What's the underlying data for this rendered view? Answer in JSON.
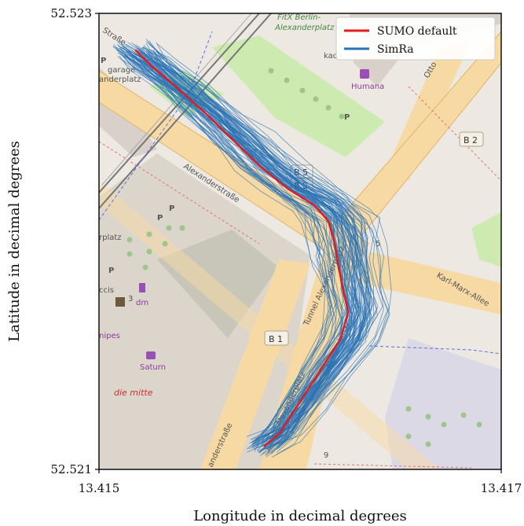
{
  "chart_data": {
    "type": "line",
    "xlabel": "Longitude in decimal degrees",
    "ylabel": "Latitude in decimal degrees",
    "xlim": [
      13.415,
      13.417
    ],
    "ylim": [
      52.521,
      52.523
    ],
    "x_ticks": [
      "13.415",
      "13.417"
    ],
    "y_ticks": [
      "52.521",
      "52.523"
    ],
    "legend_position": "top-right",
    "series": [
      {
        "name": "SUMO default",
        "color": "#e41a1c",
        "points": [
          [
            13.41518,
            52.52284
          ],
          [
            13.41526,
            52.52277
          ],
          [
            13.41538,
            52.52268
          ],
          [
            13.41552,
            52.52257
          ],
          [
            13.41566,
            52.52245
          ],
          [
            13.4158,
            52.52233
          ],
          [
            13.41594,
            52.52223
          ],
          [
            13.41607,
            52.52216
          ],
          [
            13.41614,
            52.52209
          ],
          [
            13.41617,
            52.522
          ],
          [
            13.41619,
            52.5219
          ],
          [
            13.41621,
            52.5218
          ],
          [
            13.41624,
            52.52169
          ],
          [
            13.4162,
            52.52157
          ],
          [
            13.41609,
            52.52142
          ],
          [
            13.41598,
            52.52127
          ],
          [
            13.4159,
            52.52116
          ],
          [
            13.41582,
            52.5211
          ]
        ]
      },
      {
        "name": "SimRa",
        "color": "#2a72b5"
      }
    ],
    "background": "street map"
  },
  "map_labels": {
    "fitx": "FitX Berlin-",
    "fitx2": "Alexanderplatz",
    "garage1": "garage",
    "garage2": "anderplatz",
    "kada": "kada",
    "humana": "Humana",
    "otto": "Otto",
    "b2": "B 2",
    "alex1": "Alexanderstraße",
    "alex_top": "Straße",
    "b5a": "B 5",
    "b5b": "B 5",
    "b5c": "5",
    "rplatz": "rplatz",
    "karl": "Karl-Marx-Allee",
    "tunnel1": "Tunnel Alexanderplatz",
    "tunnel2": "Tunnel Alexanderplatz",
    "b1": "B 1",
    "dm": "dm",
    "ccis": "ccis",
    "nipes": "nipes",
    "saturn": "Saturn",
    "diemitte": "die mitte",
    "anderstr": "anderstraße",
    "alexanderstr_b": "Alexanderstr.",
    "nine": "9",
    "three": "3",
    "p": "P"
  }
}
